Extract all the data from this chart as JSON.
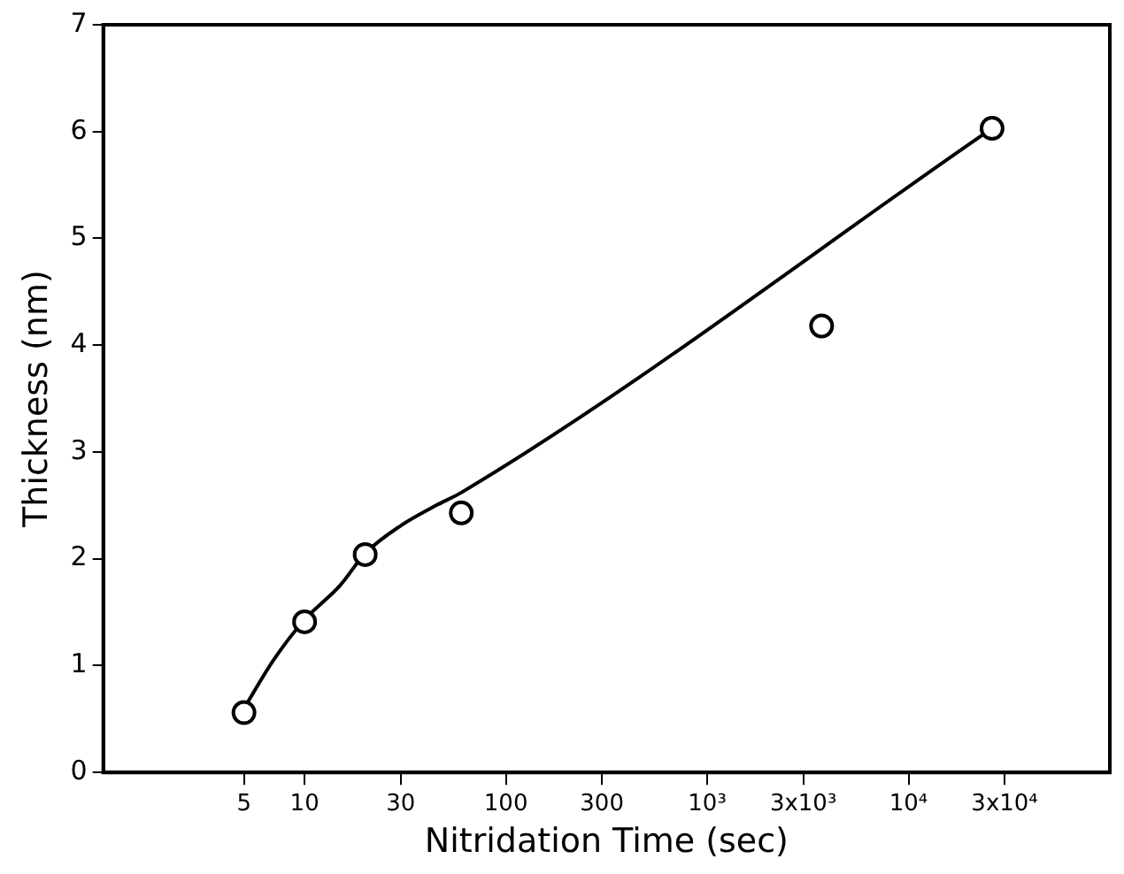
{
  "chart_data": {
    "type": "scatter",
    "xlabel": "Nitridation Time (sec)",
    "ylabel": "Thickness (nm)",
    "log": "x",
    "grid": false,
    "legend": false,
    "xlim": [
      1,
      100000
    ],
    "xticks": [
      5,
      10,
      30,
      100,
      300,
      {
        "value": 1000,
        "label": "10³"
      },
      {
        "value": 3000,
        "label": "3x10³"
      },
      {
        "value": 10000,
        "label": "10⁴"
      },
      {
        "value": 30000,
        "label": "3x10⁴"
      }
    ],
    "ylim": [
      0,
      7
    ],
    "yticks": [
      0,
      1,
      2,
      3,
      4,
      5,
      6,
      7
    ],
    "series": [
      {
        "color": "#000000",
        "marker": "circle",
        "x": [
          5,
          10,
          20,
          60,
          3700,
          26000
        ],
        "values": [
          0.56,
          1.41,
          2.04,
          2.43,
          4.18,
          6.03
        ]
      },
      {
        "type": "line",
        "color": "#000000",
        "marker": "none",
        "line_style": "solid",
        "x": [
          5,
          7,
          10,
          15,
          20,
          30,
          45,
          60,
          26000
        ],
        "values": [
          0.6,
          1.05,
          1.43,
          1.75,
          2.05,
          2.31,
          2.5,
          2.62,
          6.03
        ]
      }
    ]
  }
}
